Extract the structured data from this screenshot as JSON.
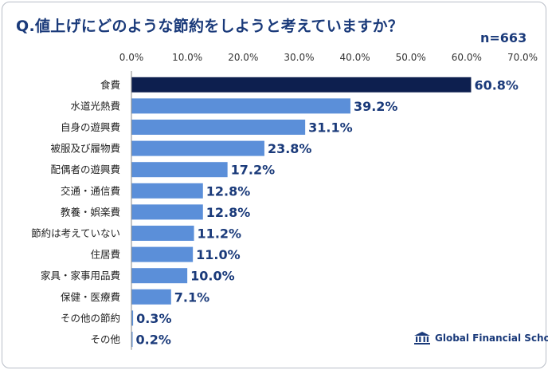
{
  "title": "Q.値上げにどのような節約をしようと考えていますか？",
  "sample": "n=663",
  "brand": "Global Financial School",
  "chart_data": {
    "type": "bar",
    "orientation": "horizontal",
    "title": "Q.値上げにどのような節約をしようと考えていますか？",
    "categories": [
      "食費",
      "水道光熱費",
      "自身の遊興費",
      "被服及び履物費",
      "配偶者の遊興費",
      "交通・通信費",
      "教養・娯楽費",
      "節約は考えていない",
      "住居費",
      "家具・家事用品費",
      "保健・医療費",
      "その他の節約",
      "その他"
    ],
    "values": [
      60.8,
      39.2,
      31.1,
      23.8,
      17.2,
      12.8,
      12.8,
      11.2,
      11.0,
      10.0,
      7.1,
      0.3,
      0.2
    ],
    "value_labels": [
      "60.8%",
      "39.2%",
      "31.1%",
      "23.8%",
      "17.2%",
      "12.8%",
      "12.8%",
      "11.2%",
      "11.0%",
      "10.0%",
      "7.1%",
      "0.3%",
      "0.2%"
    ],
    "xlim": [
      0,
      70
    ],
    "x_ticks": [
      "0.0%",
      "10.0%",
      "20.0%",
      "30.0%",
      "40.0%",
      "50.0%",
      "60.0%",
      "70.0%"
    ],
    "xlabel": "",
    "ylabel": "",
    "grid": false,
    "axis_position": "top",
    "colors": {
      "highlight": "#0d1f4f",
      "bar": "#5b8fd9",
      "label": "#1a3a7a"
    }
  }
}
